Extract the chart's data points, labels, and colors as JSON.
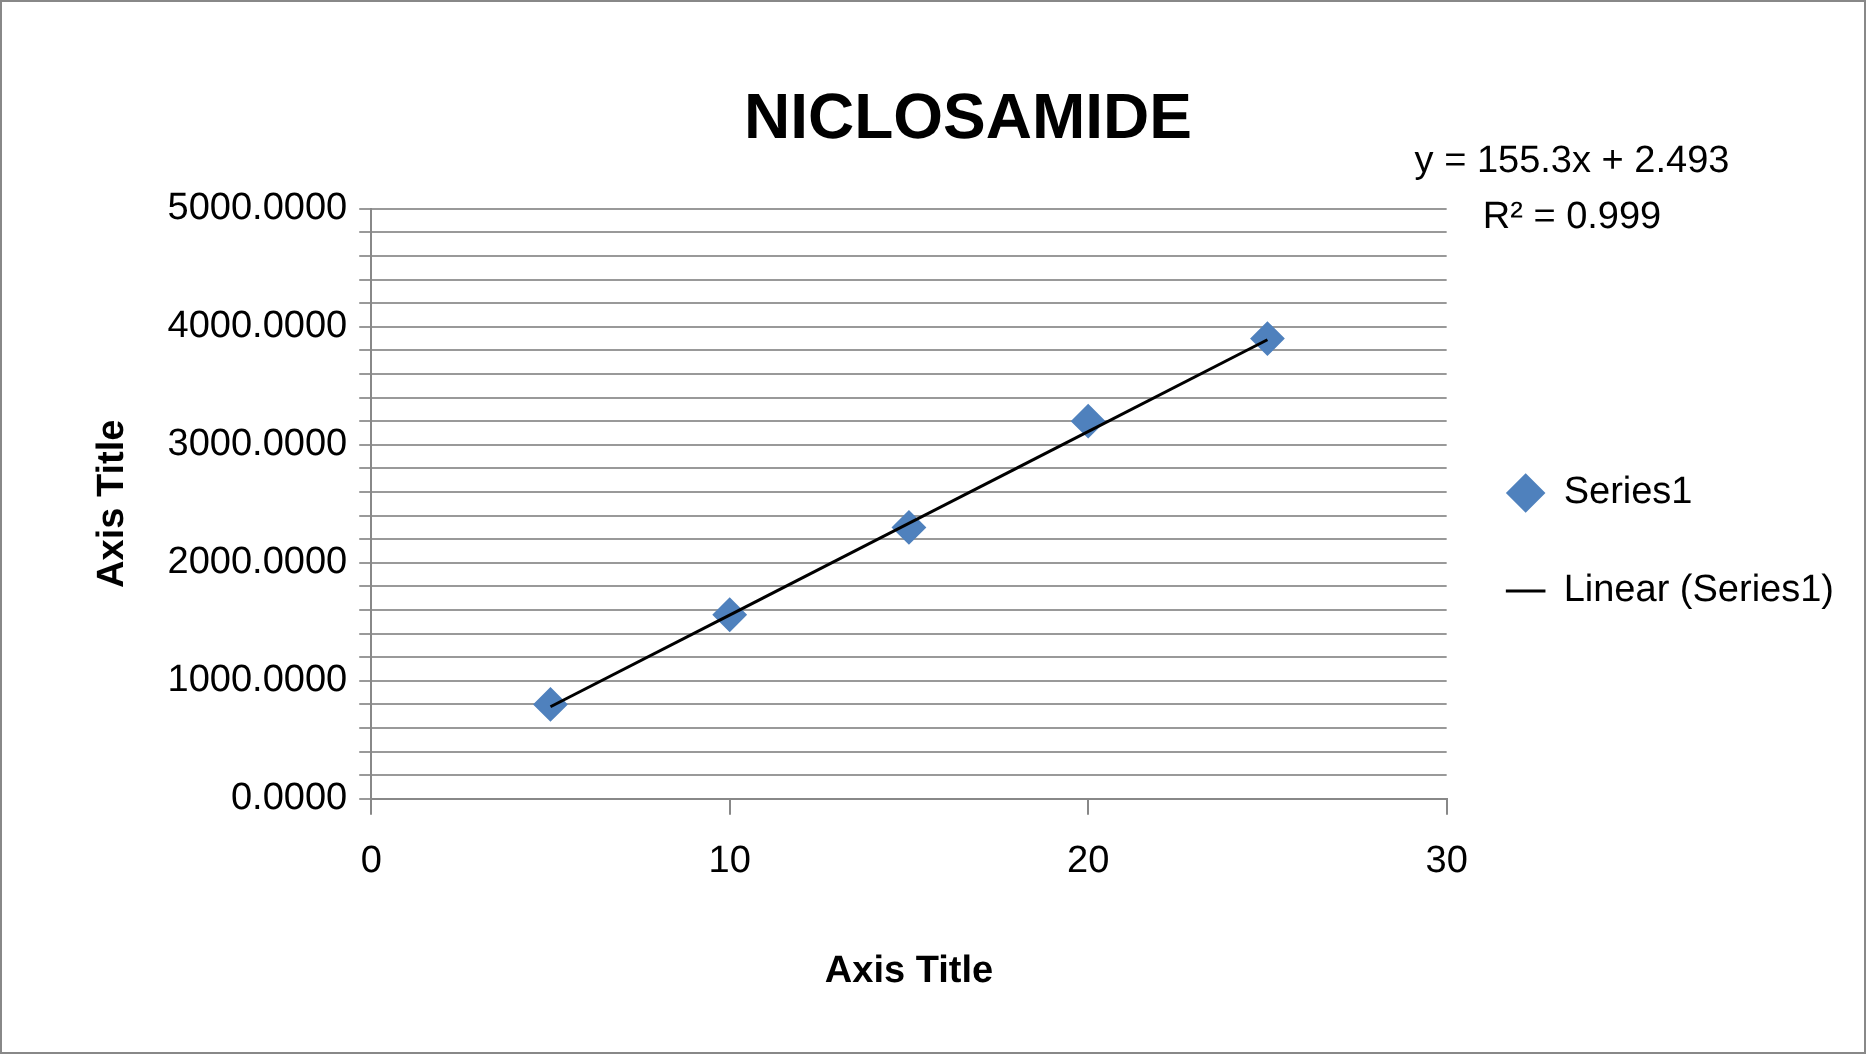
{
  "chart_data": {
    "type": "scatter",
    "title": "NICLOSAMIDE",
    "xlabel": "Axis Title",
    "ylabel": "Axis Title",
    "annotations": [
      "y = 155.3x + 2.493",
      "R² = 0.999"
    ],
    "x": [
      5,
      10,
      15,
      20,
      25
    ],
    "series": [
      {
        "name": "Series1",
        "color": "#4f81bd",
        "marker": "diamond",
        "values": [
          800,
          1560,
          2300,
          3200,
          3900
        ]
      },
      {
        "name": "Linear (Series1)",
        "type": "line",
        "color": "#000000",
        "marker": "none",
        "x": [
          5,
          25
        ],
        "values": [
          780,
          3890
        ]
      }
    ],
    "xlim": [
      0,
      30
    ],
    "xticks": [
      0,
      10,
      20,
      30
    ],
    "ylim": [
      0,
      5000
    ],
    "yticks": [
      {
        "value": 0,
        "label": "0.0000"
      },
      {
        "value": 200,
        "label": null
      },
      {
        "value": 400,
        "label": null
      },
      {
        "value": 600,
        "label": null
      },
      {
        "value": 800,
        "label": null
      },
      {
        "value": 1000,
        "label": "1000.0000"
      },
      {
        "value": 1200,
        "label": null
      },
      {
        "value": 1400,
        "label": null
      },
      {
        "value": 1600,
        "label": null
      },
      {
        "value": 1800,
        "label": null
      },
      {
        "value": 2000,
        "label": "2000.0000"
      },
      {
        "value": 2200,
        "label": null
      },
      {
        "value": 2400,
        "label": null
      },
      {
        "value": 2600,
        "label": null
      },
      {
        "value": 2800,
        "label": null
      },
      {
        "value": 3000,
        "label": "3000.0000"
      },
      {
        "value": 3200,
        "label": null
      },
      {
        "value": 3400,
        "label": null
      },
      {
        "value": 3600,
        "label": null
      },
      {
        "value": 3800,
        "label": null
      },
      {
        "value": 4000,
        "label": "4000.0000"
      },
      {
        "value": 4200,
        "label": null
      },
      {
        "value": 4400,
        "label": null
      },
      {
        "value": 4600,
        "label": null
      },
      {
        "value": 4800,
        "label": null
      },
      {
        "value": 5000,
        "label": "5000.0000"
      }
    ],
    "grid": "y",
    "legend": "right",
    "line_style": "solid"
  }
}
